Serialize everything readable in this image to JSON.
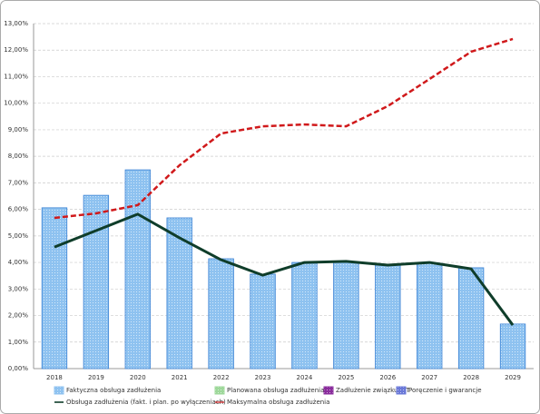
{
  "chart_data": {
    "type": "bar",
    "categories": [
      "2018",
      "2019",
      "2020",
      "2021",
      "2022",
      "2023",
      "2024",
      "2025",
      "2026",
      "2027",
      "2028",
      "2029"
    ],
    "series": [
      {
        "name": "Faktyczna obsługa zadłużenia",
        "type": "bar",
        "color": "#8ec2f0",
        "values": [
          6.06,
          6.53,
          7.49,
          5.68,
          4.14,
          3.56,
          4.0,
          4.0,
          3.9,
          3.97,
          3.8,
          1.68
        ]
      },
      {
        "name": "Planowana obsługa zadłużenia",
        "type": "bar",
        "color": "#9ed89a",
        "values": [
          null,
          null,
          null,
          null,
          null,
          null,
          null,
          null,
          null,
          null,
          null,
          null
        ]
      },
      {
        "name": "Zadłużenie związku JST",
        "type": "bar",
        "color": "#8a2c9c",
        "values": [
          null,
          null,
          null,
          null,
          null,
          null,
          null,
          null,
          null,
          null,
          null,
          null
        ]
      },
      {
        "name": "Poręczenie i gwarancje",
        "type": "bar",
        "color": "#6a78d8",
        "values": [
          null,
          null,
          null,
          null,
          null,
          null,
          null,
          null,
          null,
          null,
          null,
          null
        ]
      },
      {
        "name": "Obsługa zadłużenia (fakt. i plan. po wyłączeniach)",
        "type": "line",
        "color": "#0f3d2a",
        "values": [
          4.58,
          5.2,
          5.82,
          4.93,
          4.1,
          3.52,
          4.0,
          4.04,
          3.9,
          4.0,
          3.76,
          1.64
        ]
      },
      {
        "name": "Maksymalna obsługa zadłużenia",
        "type": "line",
        "color": "#d0191b",
        "dashed": true,
        "values": [
          5.68,
          5.85,
          6.16,
          7.66,
          8.86,
          9.13,
          9.2,
          9.13,
          9.89,
          10.91,
          11.94,
          12.42
        ]
      }
    ],
    "ylim": [
      0,
      13
    ],
    "yticks": [
      {
        "value": 0,
        "label": "0,00%"
      },
      {
        "value": 1,
        "label": "1,00%"
      },
      {
        "value": 2,
        "label": "2,00%"
      },
      {
        "value": 3,
        "label": "3,00%"
      },
      {
        "value": 4,
        "label": "4,00%"
      },
      {
        "value": 5,
        "label": "5,00%"
      },
      {
        "value": 6,
        "label": "6,00%"
      },
      {
        "value": 7,
        "label": "7,00%"
      },
      {
        "value": 8,
        "label": "8,00%"
      },
      {
        "value": 9,
        "label": "9,00%"
      },
      {
        "value": 10,
        "label": "10,00%"
      },
      {
        "value": 11,
        "label": "11,00%"
      },
      {
        "value": 12,
        "label": "12,00%"
      },
      {
        "value": 13,
        "label": "13,00%"
      }
    ],
    "grid": true
  }
}
